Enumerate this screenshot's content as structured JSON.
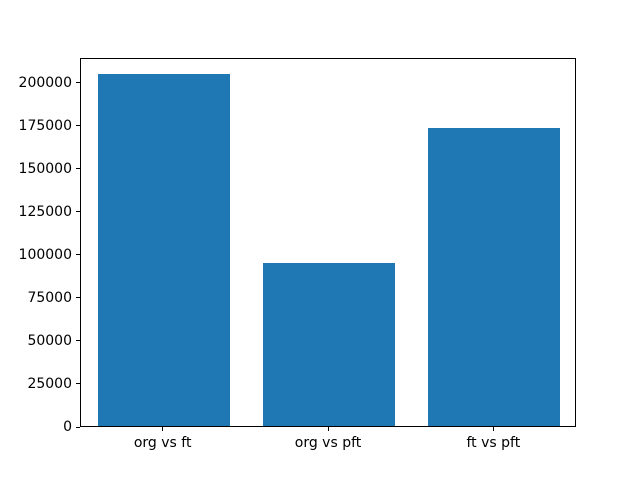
{
  "chart_data": {
    "type": "bar",
    "title": "",
    "xlabel": "",
    "ylabel": "",
    "categories": [
      "org vs ft",
      "org vs pft",
      "ft vs pft"
    ],
    "values": [
      204500,
      95000,
      173000
    ],
    "yticks": [
      0,
      25000,
      50000,
      75000,
      100000,
      125000,
      150000,
      175000,
      200000
    ],
    "ylim": [
      0,
      214500
    ],
    "bar_color": "#1f77b4",
    "frame_color": "#000000",
    "background_color": "#ffffff",
    "grid": false,
    "legend_position": "none",
    "bar_rel_width": 0.8
  }
}
